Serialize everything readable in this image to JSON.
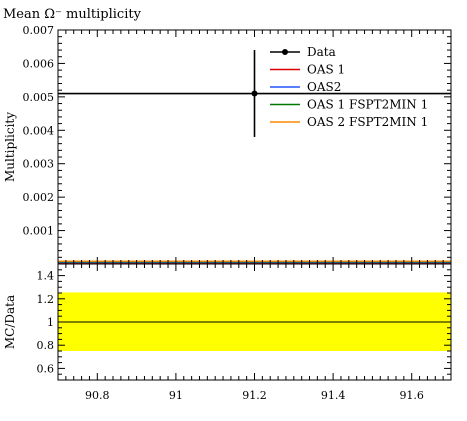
{
  "chart_data": {
    "type": "scatter",
    "title": "Mean Ω⁻ multiplicity",
    "xlim": [
      90.7,
      91.7
    ],
    "x_ticks": [
      "90.8",
      "91",
      "91.2",
      "91.4",
      "91.6"
    ],
    "x_tick_values": [
      90.8,
      91.0,
      91.2,
      91.4,
      91.6
    ],
    "main_panel": {
      "ylabel": "Multiplicity",
      "ylim": [
        0,
        0.007
      ],
      "y_ticks": [
        "0.001",
        "0.002",
        "0.003",
        "0.004",
        "0.005",
        "0.006",
        "0.007"
      ],
      "y_tick_values": [
        0.001,
        0.002,
        0.003,
        0.004,
        0.005,
        0.006,
        0.007
      ],
      "data": {
        "name": "Data",
        "x": 91.2,
        "y": 0.0051,
        "y_err_low": 0.0038,
        "y_err_high": 0.0064,
        "x_range": [
          90.7,
          91.7
        ],
        "color": "#000000"
      },
      "series": [
        {
          "name": "OAS 1",
          "color": "#dd0000",
          "y": 3e-05
        },
        {
          "name": "OAS2",
          "color": "#2255ff",
          "y": 3e-05
        },
        {
          "name": "OAS 1 FSPT2MIN 1",
          "color": "#007700",
          "y": 3e-05
        },
        {
          "name": "OAS 2 FSPT2MIN 1",
          "color": "#ff8800",
          "y": 3e-05
        }
      ],
      "legend_position": "top-right"
    },
    "ratio_panel": {
      "ylabel": "MC/Data",
      "ylim": [
        0.5,
        1.5
      ],
      "y_ticks": [
        "0.6",
        "0.8",
        "1",
        "1.2",
        "1.4"
      ],
      "y_tick_values": [
        0.6,
        0.8,
        1.0,
        1.2,
        1.4
      ],
      "reference_line": 1.0,
      "band": {
        "low": 0.75,
        "high": 1.255,
        "color": "#ffff00"
      }
    }
  }
}
